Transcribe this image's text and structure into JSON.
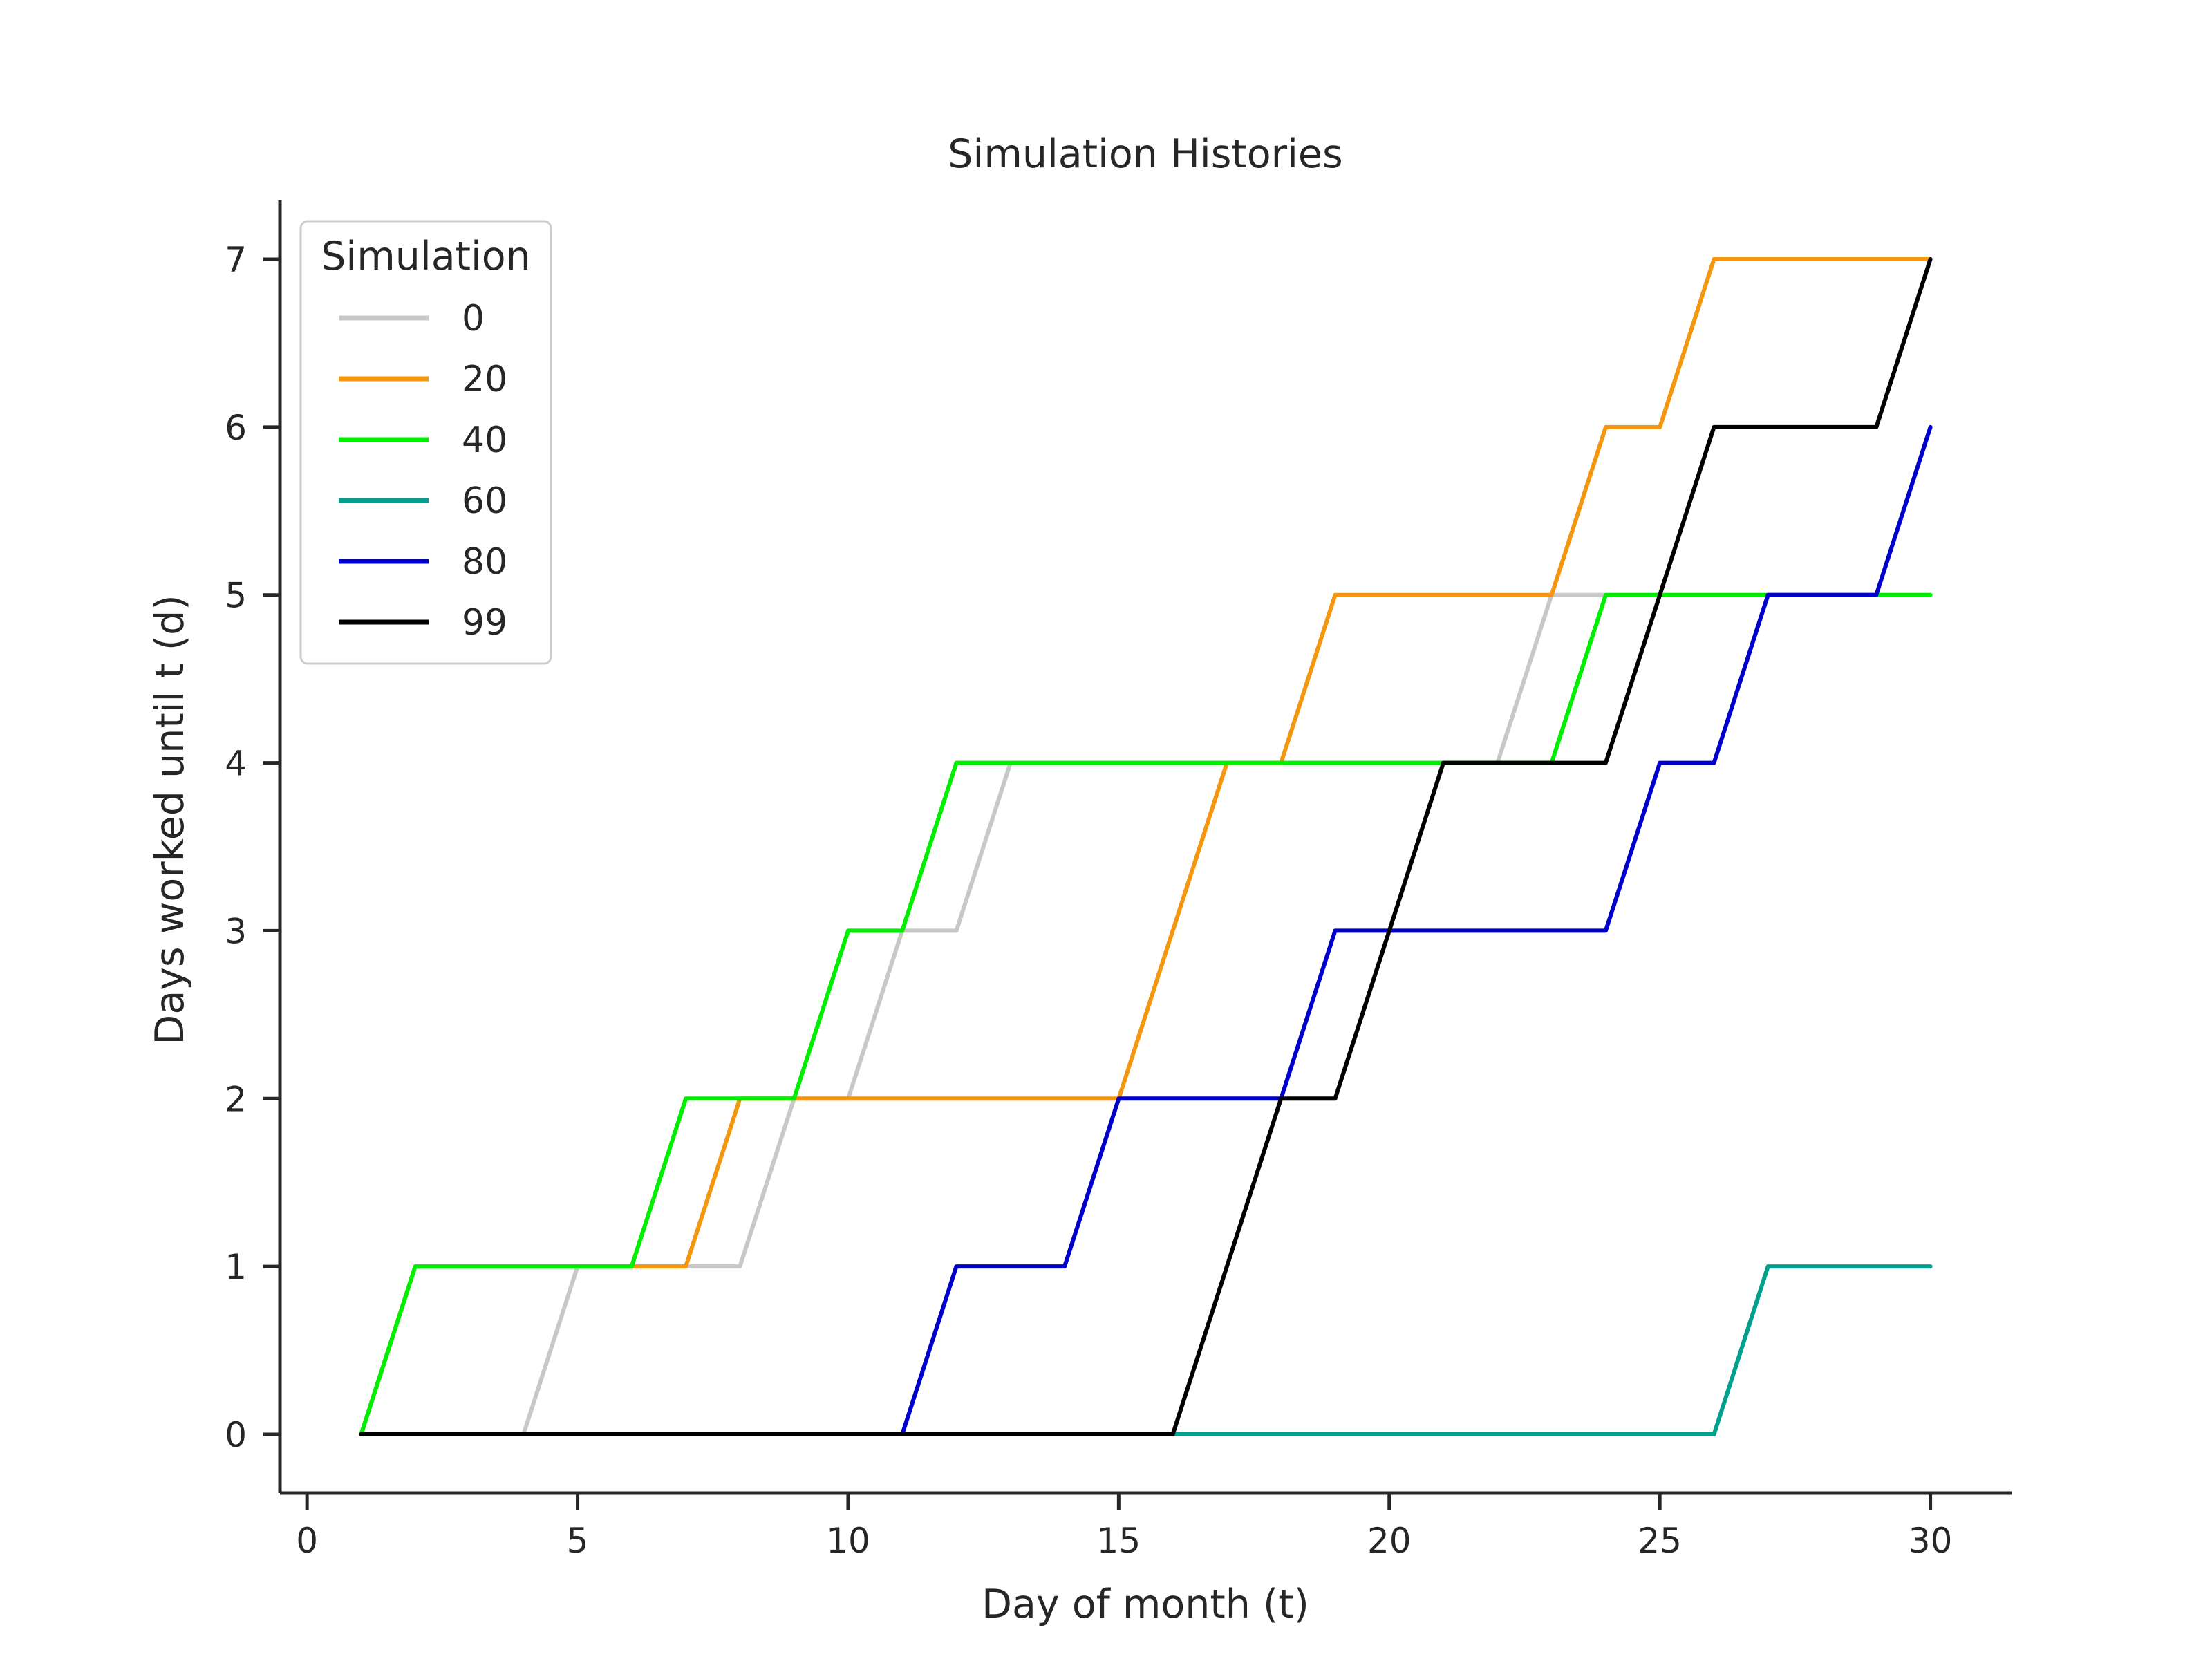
{
  "chart_data": {
    "type": "line",
    "title": "Simulation Histories",
    "xlabel": "Day of month (t)",
    "ylabel": "Days worked until t (d)",
    "xlim": [
      -0.5,
      31.5
    ],
    "ylim": [
      -0.35,
      7.35
    ],
    "xticks": [
      0,
      5,
      10,
      15,
      20,
      25,
      30
    ],
    "yticks": [
      0,
      1,
      2,
      3,
      4,
      5,
      6,
      7
    ],
    "grid": false,
    "legend": {
      "title": "Simulation",
      "position": "top-left"
    },
    "x": [
      1,
      2,
      3,
      4,
      5,
      6,
      7,
      8,
      9,
      10,
      11,
      12,
      13,
      14,
      15,
      16,
      17,
      18,
      19,
      20,
      21,
      22,
      23,
      24,
      25,
      26,
      27,
      28,
      29,
      30
    ],
    "series": [
      {
        "name": "0",
        "color": "#c8c8c8",
        "values": [
          0,
          0,
          0,
          0,
          1,
          1,
          1,
          1,
          2,
          2,
          3,
          3,
          4,
          4,
          4,
          4,
          4,
          4,
          4,
          4,
          4,
          4,
          5,
          5,
          5,
          5,
          5,
          5,
          5,
          5
        ]
      },
      {
        "name": "20",
        "color": "#f5960f",
        "values": [
          0,
          1,
          1,
          1,
          1,
          1,
          1,
          2,
          2,
          2,
          2,
          2,
          2,
          2,
          2,
          3,
          4,
          4,
          5,
          5,
          5,
          5,
          5,
          6,
          6,
          7,
          7,
          7,
          7,
          7
        ]
      },
      {
        "name": "40",
        "color": "#00ee00",
        "values": [
          0,
          1,
          1,
          1,
          1,
          1,
          2,
          2,
          2,
          3,
          3,
          4,
          4,
          4,
          4,
          4,
          4,
          4,
          4,
          4,
          4,
          4,
          4,
          5,
          5,
          5,
          5,
          5,
          5,
          5
        ]
      },
      {
        "name": "60",
        "color": "#00a08c",
        "values": [
          0,
          0,
          0,
          0,
          0,
          0,
          0,
          0,
          0,
          0,
          0,
          0,
          0,
          0,
          0,
          0,
          0,
          0,
          0,
          0,
          0,
          0,
          0,
          0,
          0,
          0,
          1,
          1,
          1,
          1
        ]
      },
      {
        "name": "80",
        "color": "#0000cd",
        "values": [
          0,
          0,
          0,
          0,
          0,
          0,
          0,
          0,
          0,
          0,
          0,
          1,
          1,
          1,
          2,
          2,
          2,
          2,
          3,
          3,
          3,
          3,
          3,
          3,
          4,
          4,
          5,
          5,
          5,
          6
        ]
      },
      {
        "name": "99",
        "color": "#000000",
        "values": [
          0,
          0,
          0,
          0,
          0,
          0,
          0,
          0,
          0,
          0,
          0,
          0,
          0,
          0,
          0,
          0,
          1,
          2,
          2,
          3,
          4,
          4,
          4,
          4,
          5,
          6,
          6,
          6,
          6,
          7
        ]
      }
    ]
  }
}
